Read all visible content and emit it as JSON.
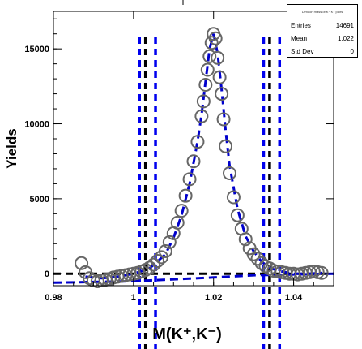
{
  "chart_data": {
    "type": "scatter",
    "title": "",
    "xlabel": "M(K⁺,K⁻)",
    "ylabel": "Yields",
    "xlim": [
      0.98,
      1.05
    ],
    "ylim": [
      -800,
      17500
    ],
    "x_ticks": [
      "0.98",
      "1",
      "1.02",
      "1.04"
    ],
    "y_ticks": [
      "0",
      "5000",
      "10000",
      "15000"
    ],
    "grid": false,
    "series": [
      {
        "kind": "data-points",
        "x": [
          0.987,
          0.988,
          0.989,
          0.99,
          0.991,
          0.992,
          0.993,
          0.994,
          0.995,
          0.996,
          0.997,
          0.998,
          0.999,
          1.0,
          1.001,
          1.002,
          1.003,
          1.004,
          1.005,
          1.006,
          1.007,
          1.008,
          1.009,
          1.01,
          1.011,
          1.012,
          1.013,
          1.014,
          1.015,
          1.016,
          1.017,
          1.0175,
          1.018,
          1.0185,
          1.019,
          1.0195,
          1.02,
          1.0205,
          1.021,
          1.0215,
          1.022,
          1.0225,
          1.023,
          1.024,
          1.025,
          1.026,
          1.027,
          1.028,
          1.029,
          1.03,
          1.031,
          1.032,
          1.033,
          1.034,
          1.035,
          1.036,
          1.037,
          1.038,
          1.039,
          1.04,
          1.041,
          1.042,
          1.043,
          1.044,
          1.045,
          1.046,
          1.047
        ],
        "y": [
          700,
          100,
          -300,
          -450,
          -500,
          -450,
          -400,
          -350,
          -250,
          -200,
          -150,
          -100,
          -50,
          0,
          50,
          150,
          250,
          400,
          600,
          850,
          1100,
          1500,
          2100,
          2700,
          3400,
          4200,
          5200,
          6300,
          7500,
          8800,
          10500,
          11500,
          12600,
          13600,
          14500,
          15400,
          16000,
          15700,
          14400,
          13100,
          12000,
          10300,
          8500,
          6700,
          5100,
          3900,
          3000,
          2300,
          1700,
          1300,
          1000,
          700,
          500,
          350,
          200,
          150,
          100,
          50,
          0,
          0,
          -50,
          0,
          50,
          100,
          150,
          100,
          50
        ]
      },
      {
        "kind": "fit-curve",
        "x": [
          0.988,
          0.992,
          0.996,
          1.0,
          1.004,
          1.008,
          1.01,
          1.012,
          1.014,
          1.016,
          1.017,
          1.018,
          1.019,
          1.02,
          1.021,
          1.022,
          1.023,
          1.024,
          1.026,
          1.028,
          1.03,
          1.032,
          1.034,
          1.036,
          1.04,
          1.044,
          1.047
        ],
        "y": [
          -200,
          -300,
          -200,
          0,
          350,
          1300,
          2400,
          3900,
          6000,
          8800,
          10600,
          12800,
          15000,
          16000,
          14700,
          12300,
          9600,
          7200,
          4300,
          2500,
          1500,
          800,
          400,
          200,
          0,
          0,
          50
        ]
      },
      {
        "kind": "background",
        "x": [
          0.98,
          1.0,
          1.02,
          1.03,
          1.05
        ],
        "y": [
          -600,
          -500,
          -250,
          -100,
          0
        ]
      }
    ],
    "reference_lines": {
      "baseline_y": 0,
      "black_vertical_x": [
        1.003,
        1.034
      ],
      "blue_vertical_x": [
        1.0015,
        1.0055,
        1.0325,
        1.0365
      ]
    },
    "stats_box": {
      "title": "Dimuon mass of K⁺ K⁻ pairs",
      "rows": [
        {
          "label": "Entries",
          "value": "14691"
        },
        {
          "label": "Mean",
          "value": "1.022"
        },
        {
          "label": "Std Dev",
          "value": "0"
        }
      ]
    },
    "colors": {
      "points": "#666666",
      "fit": "#0000cc",
      "black_lines": "#000000",
      "blue_lines": "#0000ee"
    }
  }
}
